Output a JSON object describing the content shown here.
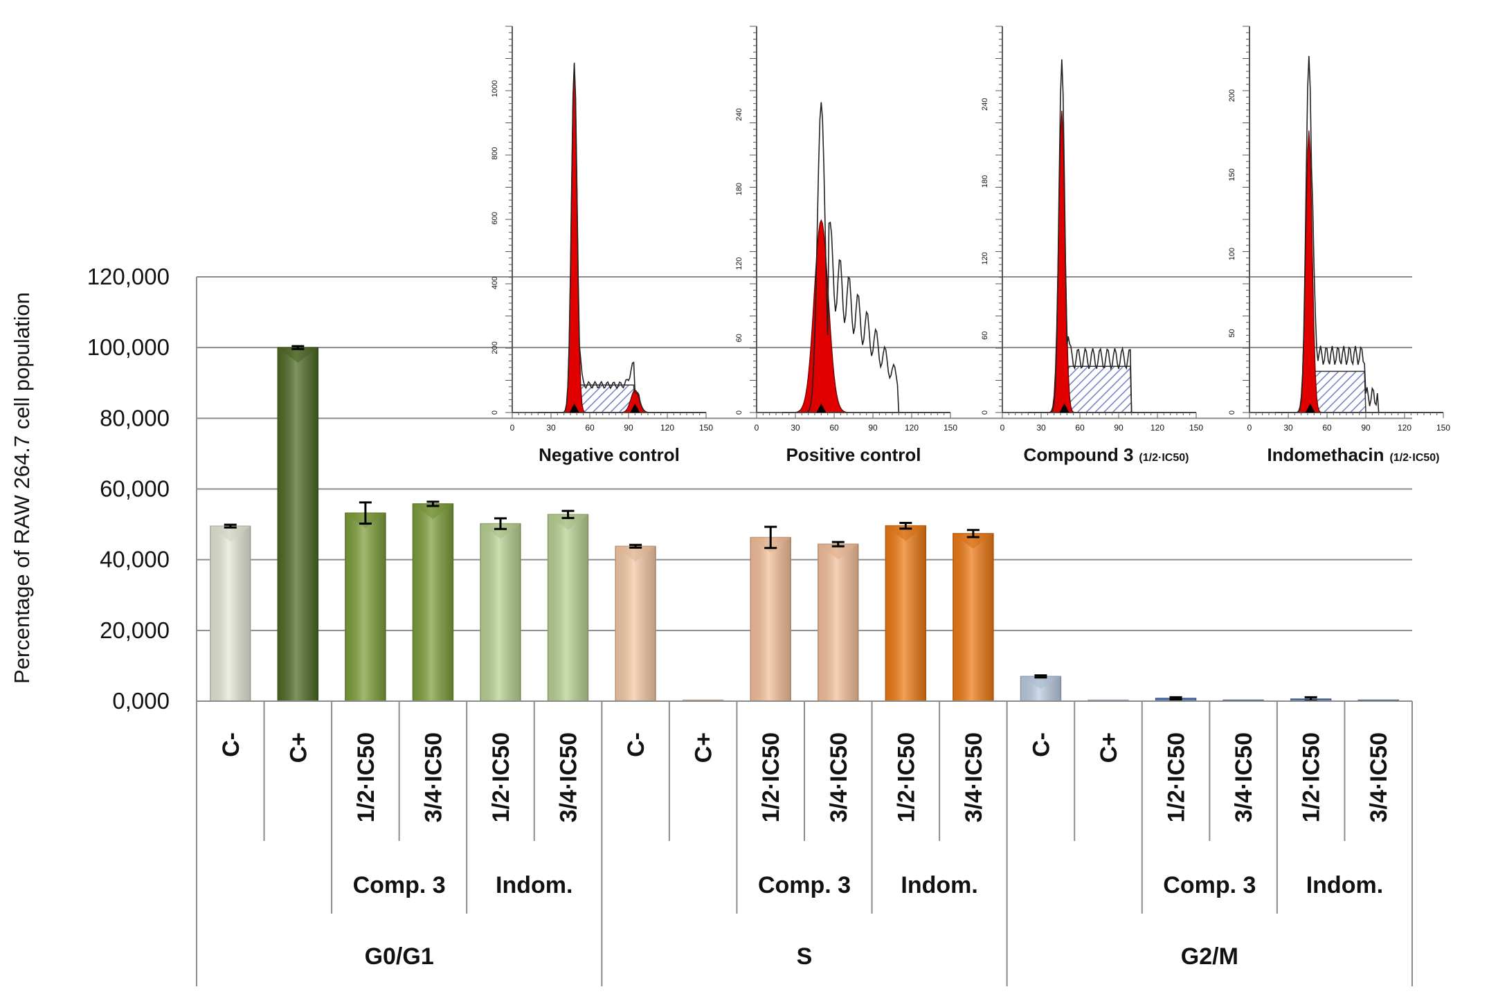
{
  "chart_data": {
    "type": "bar",
    "ylabel": "Percentage of RAW 264.7 cell population",
    "yticks": [
      "0,000",
      "20,000",
      "40,000",
      "60,000",
      "80,000",
      "100,000",
      "120,000"
    ],
    "ylim": [
      0,
      120
    ],
    "grid": true,
    "phases": [
      "G0/G1",
      "S",
      "G2/M"
    ],
    "treatments": [
      "Comp. 3",
      "Indom."
    ],
    "categories": [
      "C-",
      "C+",
      "1/2·IC50",
      "3/4·IC50",
      "1/2·IC50",
      "3/4·IC50"
    ],
    "series": [
      {
        "phase": "G0/G1",
        "values": [
          49.5,
          100.0,
          53.2,
          55.8,
          50.2,
          52.8
        ],
        "errors": [
          0.4,
          0.4,
          3.0,
          0.6,
          1.5,
          1.0
        ],
        "colors": [
          "#e4e8d6",
          "#4e6a24",
          "#7d9e3a",
          "#7d9e3a",
          "#b9d193",
          "#b9d193"
        ]
      },
      {
        "phase": "S",
        "values": [
          43.8,
          0.0,
          46.3,
          44.4,
          49.6,
          47.4
        ],
        "errors": [
          0.4,
          0.0,
          3.0,
          0.6,
          0.8,
          1.0
        ],
        "colors": [
          "#f4c9a5",
          "#f4c9a5",
          "#f4c09a",
          "#f4c09a",
          "#ee7a14",
          "#ee7a14"
        ]
      },
      {
        "phase": "G2/M",
        "values": [
          7.0,
          0.0,
          0.8,
          0.0,
          0.6,
          0.0
        ],
        "errors": [
          0.3,
          0.0,
          0.3,
          0.0,
          0.5,
          0.0
        ],
        "colors": [
          "#bccce2",
          "#bccce2",
          "#5877b0",
          "#5877b0",
          "#5877b0",
          "#5877b0"
        ]
      }
    ],
    "insets": [
      {
        "title": "Negative control",
        "suffix": "",
        "yticks": [
          "0",
          "200",
          "400",
          "600",
          "800",
          "1000"
        ],
        "ymax": 1150,
        "xticks": [
          "0",
          "30",
          "60",
          "90",
          "120",
          "150"
        ]
      },
      {
        "title": "Positive control",
        "suffix": "",
        "yticks": [
          "0",
          "60",
          "120",
          "180",
          "240"
        ],
        "ymax": 300,
        "xticks": [
          "0",
          "30",
          "60",
          "90",
          "120",
          "150"
        ]
      },
      {
        "title": "Compound 3",
        "suffix": "(1/2·IC50)",
        "yticks": [
          "0",
          "60",
          "120",
          "180",
          "240"
        ],
        "ymax": 290,
        "xticks": [
          "0",
          "30",
          "60",
          "90",
          "120",
          "150"
        ]
      },
      {
        "title": "Indomethacin",
        "suffix": "(1/2·IC50)",
        "yticks": [
          "0",
          "50",
          "100",
          "150",
          "200"
        ],
        "ymax": 235,
        "xticks": [
          "0",
          "30",
          "60",
          "90",
          "120",
          "150"
        ]
      }
    ]
  }
}
